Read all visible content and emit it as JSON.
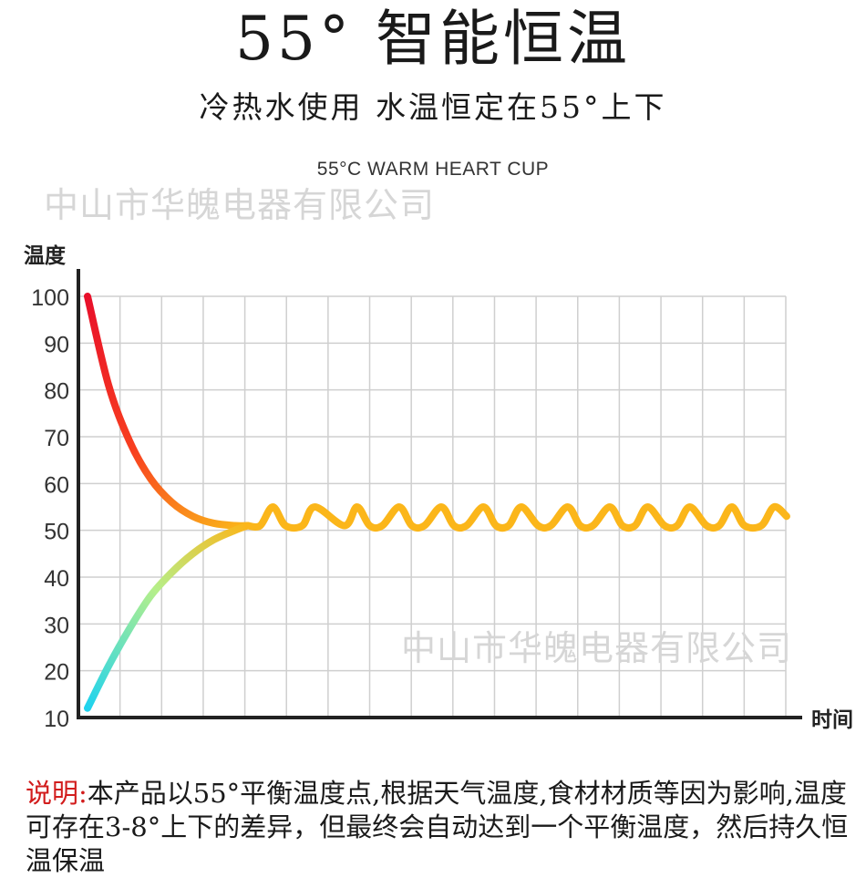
{
  "header": {
    "title": "55° 智能恒温",
    "subtitle": "冷热水使用 水温恒定在55°上下",
    "english": "55°C WARM HEART CUP"
  },
  "watermarks": [
    "中山市华魄电器有限公司",
    "中山市华魄电器有限公司"
  ],
  "chart_data": {
    "type": "line",
    "ylabel": "温度",
    "xlabel": "时间",
    "y_ticks": [
      100,
      90,
      80,
      70,
      60,
      50,
      40,
      30,
      20,
      10
    ],
    "ylim": [
      10,
      100
    ],
    "grid": true,
    "series": [
      {
        "color_start": "#e8102a",
        "color_end": "#fbb61a",
        "x": [
          0.0,
          0.5,
          1.0,
          1.5,
          2.0,
          2.5,
          3.0,
          3.5,
          3.8
        ],
        "y": [
          100,
          81,
          69,
          61,
          56,
          53,
          51.5,
          51,
          51
        ]
      },
      {
        "color_start": "#1fd3ef",
        "color_end": "#fbb61a",
        "x": [
          0.0,
          0.5,
          1.0,
          1.5,
          2.0,
          2.5,
          3.0,
          3.5,
          3.8
        ],
        "y": [
          12,
          21,
          29,
          36,
          41,
          45,
          48,
          50,
          51
        ]
      },
      {
        "color": "#fbb61a",
        "x": [
          3.8,
          4.1,
          4.4,
          4.7,
          5.1,
          5.4,
          6.1,
          6.4,
          6.7,
          7.0,
          7.4,
          7.7,
          8.0,
          8.4,
          8.7,
          9.0,
          9.4,
          9.7,
          10.0,
          10.3,
          10.7,
          11.0,
          11.4,
          11.7,
          12.0,
          12.4,
          12.7,
          13.0,
          13.3,
          13.7,
          14.0,
          14.3,
          14.7,
          15.0,
          15.3,
          15.6,
          16.0,
          16.3,
          16.6
        ],
        "y": [
          51,
          51,
          55,
          51,
          51,
          55,
          51,
          55,
          51,
          51,
          55,
          51,
          51,
          55,
          51,
          51,
          55,
          51,
          51,
          55,
          51,
          51,
          55,
          51,
          51,
          55,
          51,
          51,
          55,
          51,
          51,
          55,
          51,
          51,
          55,
          51,
          51,
          55,
          53
        ]
      }
    ]
  },
  "note": {
    "lead": "说明:",
    "text": "本产品以55°平衡温度点,根据天气温度,食材材质等因为影响,温度可存在3-8°上下的差异，但最终会自动达到一个平衡温度，然后持久恒温保温"
  }
}
